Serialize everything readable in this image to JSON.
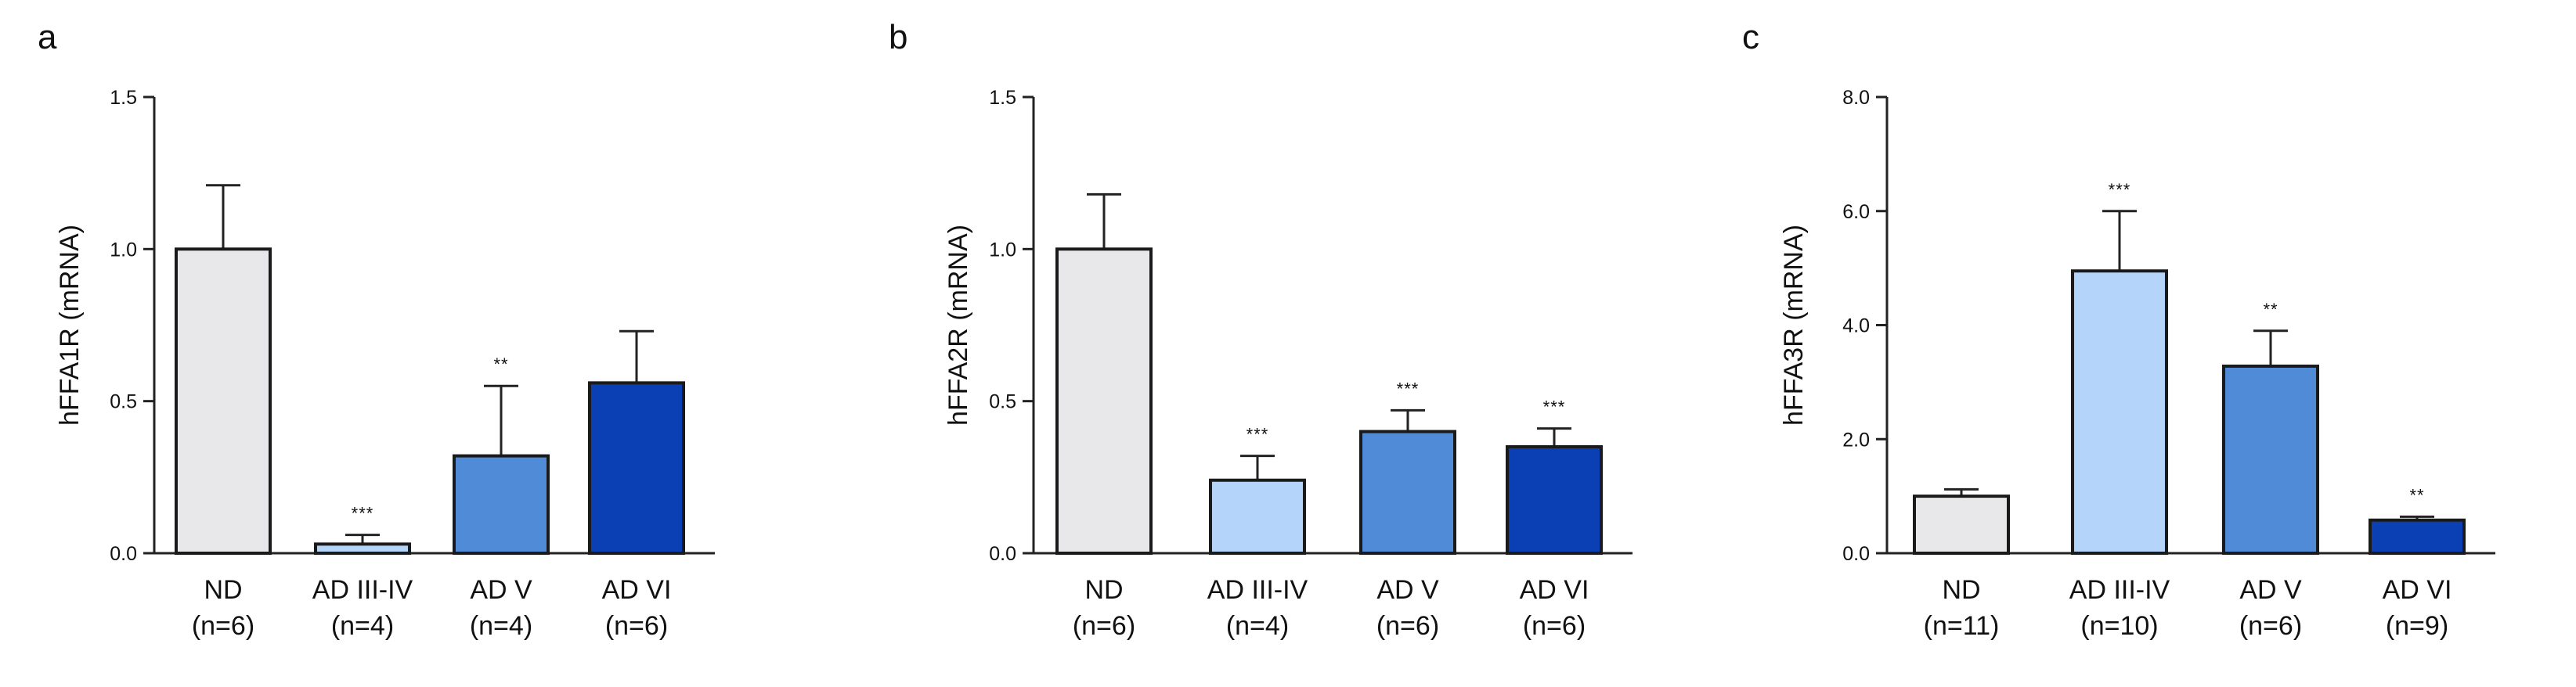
{
  "chart_data": [
    {
      "type": "bar",
      "panel": "a",
      "ylabel": "hFFA1R (mRNA)",
      "ylim": [
        0,
        1.5
      ],
      "yticks": [
        "0.0",
        "0.5",
        "1.0",
        "1.5"
      ],
      "categories": [
        "ND",
        "AD III-IV",
        "AD V",
        "AD VI"
      ],
      "n_labels": [
        "(n=6)",
        "(n=4)",
        "(n=4)",
        "(n=6)"
      ],
      "values": [
        1.0,
        0.03,
        0.32,
        0.56
      ],
      "errors": [
        0.21,
        0.03,
        0.23,
        0.17
      ],
      "significance": [
        "",
        "***",
        "**",
        ""
      ],
      "colors": [
        "#e8e8ea",
        "#b4d4fa",
        "#4f8bd6",
        "#0b40b4"
      ]
    },
    {
      "type": "bar",
      "panel": "b",
      "ylabel": "hFFA2R (mRNA)",
      "ylim": [
        0,
        1.5
      ],
      "yticks": [
        "0.0",
        "0.5",
        "1.0",
        "1.5"
      ],
      "categories": [
        "ND",
        "AD III-IV",
        "AD V",
        "AD VI"
      ],
      "n_labels": [
        "(n=6)",
        "(n=4)",
        "(n=6)",
        "(n=6)"
      ],
      "values": [
        1.0,
        0.24,
        0.4,
        0.35
      ],
      "errors": [
        0.18,
        0.08,
        0.07,
        0.06
      ],
      "significance": [
        "",
        "***",
        "***",
        "***"
      ],
      "colors": [
        "#e8e8ea",
        "#b4d4fa",
        "#4f8bd6",
        "#0b40b4"
      ]
    },
    {
      "type": "bar",
      "panel": "c",
      "ylabel": "hFFA3R (mRNA)",
      "ylim": [
        0,
        8.0
      ],
      "yticks": [
        "0.0",
        "2.0",
        "4.0",
        "6.0",
        "8.0"
      ],
      "categories": [
        "ND",
        "AD III-IV",
        "AD V",
        "AD VI"
      ],
      "n_labels": [
        "(n=11)",
        "(n=10)",
        "(n=6)",
        "(n=9)"
      ],
      "values": [
        1.0,
        4.95,
        3.28,
        0.58
      ],
      "errors": [
        0.12,
        1.05,
        0.62,
        0.06
      ],
      "significance": [
        "",
        "***",
        "**",
        "**"
      ],
      "colors": [
        "#e8e8ea",
        "#b4d4fa",
        "#4f8bd6",
        "#0b40b4"
      ]
    }
  ]
}
